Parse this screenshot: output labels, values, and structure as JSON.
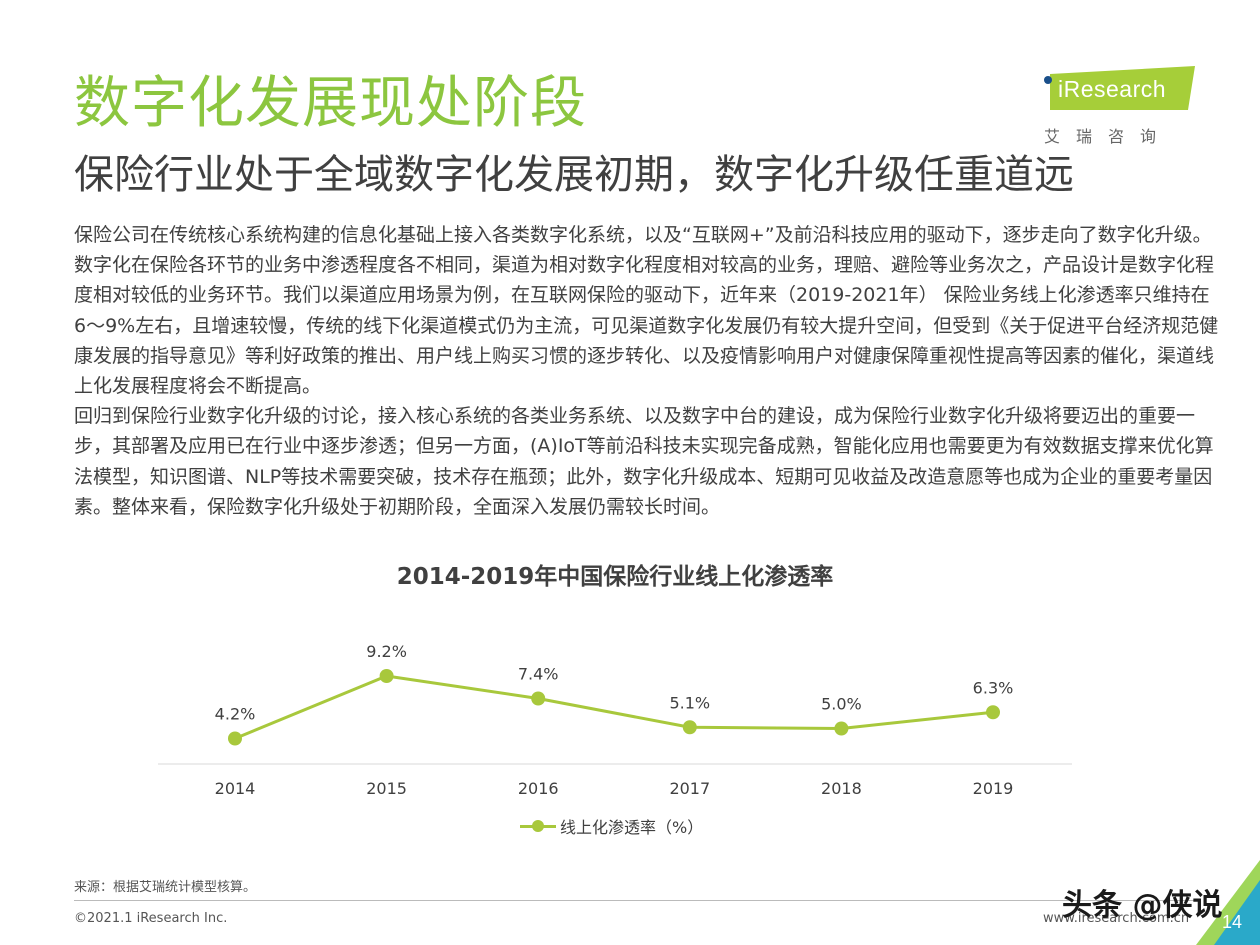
{
  "header": {
    "title": "数字化发展现处阶段",
    "subtitle": "保险行业处于全域数字化发展初期，数字化升级任重道远"
  },
  "logo": {
    "text_en": "iResearch",
    "text_cn": "艾瑞咨询"
  },
  "body": {
    "paragraph1": "保险公司在传统核心系统构建的信息化基础上接入各类数字化系统，以及“互联网+”及前沿科技应用的驱动下，逐步走向了数字化升级。数字化在保险各环节的业务中渗透程度各不相同，渠道为相对数字化程度相对较高的业务，理赔、避险等业务次之，产品设计是数字化程度相对较低的业务环节。我们以渠道应用场景为例，在互联网保险的驱动下，近年来（2019-2021年） 保险业务线上化渗透率只维持在6～9%左右，且增速较慢，传统的线下化渠道模式仍为主流，可见渠道数字化发展仍有较大提升空间，但受到《关于促进平台经济规范健康发展的指导意见》等利好政策的推出、用户线上购买习惯的逐步转化、以及疫情影响用户对健康保障重视性提高等因素的催化，渠道线上化发展程度将会不断提高。",
    "paragraph2": "回归到保险行业数字化升级的讨论，接入核心系统的各类业务系统、以及数字中台的建设，成为保险行业数字化升级将要迈出的重要一步，其部署及应用已在行业中逐步渗透；但另一方面，(A)IoT等前沿科技未实现完备成熟，智能化应用也需要更为有效数据支撑来优化算法模型，知识图谱、NLP等技术需要突破，技术存在瓶颈；此外，数字化升级成本、短期可见收益及改造意愿等也成为企业的重要考量因素。整体来看，保险数字化升级处于初期阶段，全面深入发展仍需较长时间。"
  },
  "chart_data": {
    "type": "line",
    "title": "2014-2019年中国保险行业线上化渗透率",
    "categories": [
      "2014",
      "2015",
      "2016",
      "2017",
      "2018",
      "2019"
    ],
    "series": [
      {
        "name": "线上化渗透率（%）",
        "values": [
          4.2,
          9.2,
          7.4,
          5.1,
          5.0,
          6.3
        ],
        "labels": [
          "4.2%",
          "9.2%",
          "7.4%",
          "5.1%",
          "5.0%",
          "6.3%"
        ],
        "color": "#a8c83c"
      }
    ],
    "ylim": [
      0,
      12
    ],
    "grid": false,
    "legend_position": "bottom"
  },
  "footer": {
    "source": "来源：根据艾瑞统计模型核算。",
    "copyright": "©2021.1 iResearch Inc.",
    "website": "www.iresearch.com.cn",
    "page_number": "14",
    "watermark": "头条 @侠说"
  },
  "colors": {
    "accent": "#8cc63f",
    "line": "#a8c83c",
    "text": "#404040"
  }
}
